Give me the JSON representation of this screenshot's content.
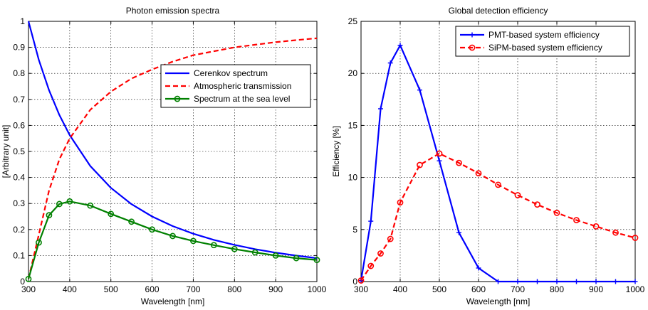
{
  "chart_data": [
    {
      "type": "line",
      "title": "Photon emission spectra",
      "xlabel": "Wavelength [nm]",
      "ylabel": "[Arbitrary unit]",
      "xlim": [
        300,
        1000
      ],
      "ylim": [
        0,
        1
      ],
      "xticks": [
        300,
        400,
        500,
        600,
        700,
        800,
        900,
        1000
      ],
      "yticks": [
        0,
        0.1,
        0.2,
        0.3,
        0.4,
        0.5,
        0.6,
        0.7,
        0.8,
        0.9,
        1
      ],
      "xtick_labels": [
        "300",
        "400",
        "500",
        "600",
        "700",
        "800",
        "900",
        "1000"
      ],
      "ytick_labels": [
        "0",
        "0.1",
        "0.2",
        "0.3",
        "0.4",
        "0.5",
        "0.6",
        "0.7",
        "0.8",
        "0.9",
        "1"
      ],
      "grid": true,
      "legend_position": "upper-right",
      "series": [
        {
          "name": "Cerenkov spectrum",
          "color": "#0000ff",
          "style": "solid",
          "marker": "none",
          "x": [
            300,
            325,
            350,
            375,
            400,
            450,
            500,
            550,
            600,
            650,
            700,
            750,
            800,
            850,
            900,
            950,
            1000
          ],
          "y": [
            1.0,
            0.852,
            0.735,
            0.64,
            0.5625,
            0.444,
            0.36,
            0.2975,
            0.25,
            0.213,
            0.184,
            0.16,
            0.141,
            0.1246,
            0.111,
            0.0997,
            0.09
          ]
        },
        {
          "name": "Atmospheric transmission",
          "color": "#ff0000",
          "style": "dashed",
          "marker": "none",
          "x": [
            300,
            325,
            350,
            375,
            400,
            450,
            500,
            550,
            600,
            650,
            700,
            750,
            800,
            850,
            900,
            950,
            1000
          ],
          "y": [
            0.01,
            0.18,
            0.35,
            0.47,
            0.55,
            0.66,
            0.73,
            0.78,
            0.815,
            0.845,
            0.87,
            0.885,
            0.9,
            0.91,
            0.92,
            0.928,
            0.935
          ]
        },
        {
          "name": "Spectrum at the sea level",
          "color": "#008000",
          "style": "solid",
          "marker": "circle",
          "x": [
            300,
            325,
            350,
            375,
            400,
            450,
            500,
            550,
            600,
            650,
            700,
            750,
            800,
            850,
            900,
            950,
            1000
          ],
          "y": [
            0.01,
            0.15,
            0.255,
            0.298,
            0.308,
            0.292,
            0.26,
            0.23,
            0.2,
            0.175,
            0.156,
            0.14,
            0.125,
            0.112,
            0.1,
            0.09,
            0.083
          ]
        }
      ]
    },
    {
      "type": "line",
      "title": "Global detection efficiency",
      "xlabel": "Wavelength [nm]",
      "ylabel": "Efficiency [%]",
      "xlim": [
        300,
        1000
      ],
      "ylim": [
        0,
        25
      ],
      "xticks": [
        300,
        400,
        500,
        600,
        700,
        800,
        900,
        1000
      ],
      "yticks": [
        0,
        5,
        10,
        15,
        20,
        25
      ],
      "xtick_labels": [
        "300",
        "400",
        "500",
        "600",
        "700",
        "800",
        "900",
        "1000"
      ],
      "ytick_labels": [
        "0",
        "5",
        "10",
        "15",
        "20",
        "25"
      ],
      "grid": true,
      "legend_position": "upper-right",
      "series": [
        {
          "name": "PMT-based system efficiency",
          "color": "#0000ff",
          "style": "solid",
          "marker": "plus",
          "x": [
            300,
            325,
            350,
            375,
            400,
            450,
            500,
            550,
            600,
            650,
            700,
            750,
            800,
            850,
            900,
            950,
            1000
          ],
          "y": [
            0.1,
            5.8,
            16.6,
            21.0,
            22.7,
            18.4,
            11.6,
            4.7,
            1.3,
            0,
            0,
            0,
            0,
            0,
            0,
            0,
            0
          ]
        },
        {
          "name": "SiPM-based system efficiency",
          "color": "#ff0000",
          "style": "dashed",
          "marker": "circle",
          "x": [
            300,
            325,
            350,
            375,
            400,
            450,
            500,
            550,
            600,
            650,
            700,
            750,
            800,
            850,
            900,
            950,
            1000
          ],
          "y": [
            0.1,
            1.5,
            2.7,
            4.1,
            7.6,
            11.2,
            12.3,
            11.4,
            10.4,
            9.3,
            8.3,
            7.4,
            6.6,
            5.9,
            5.3,
            4.7,
            4.2
          ]
        }
      ]
    }
  ]
}
